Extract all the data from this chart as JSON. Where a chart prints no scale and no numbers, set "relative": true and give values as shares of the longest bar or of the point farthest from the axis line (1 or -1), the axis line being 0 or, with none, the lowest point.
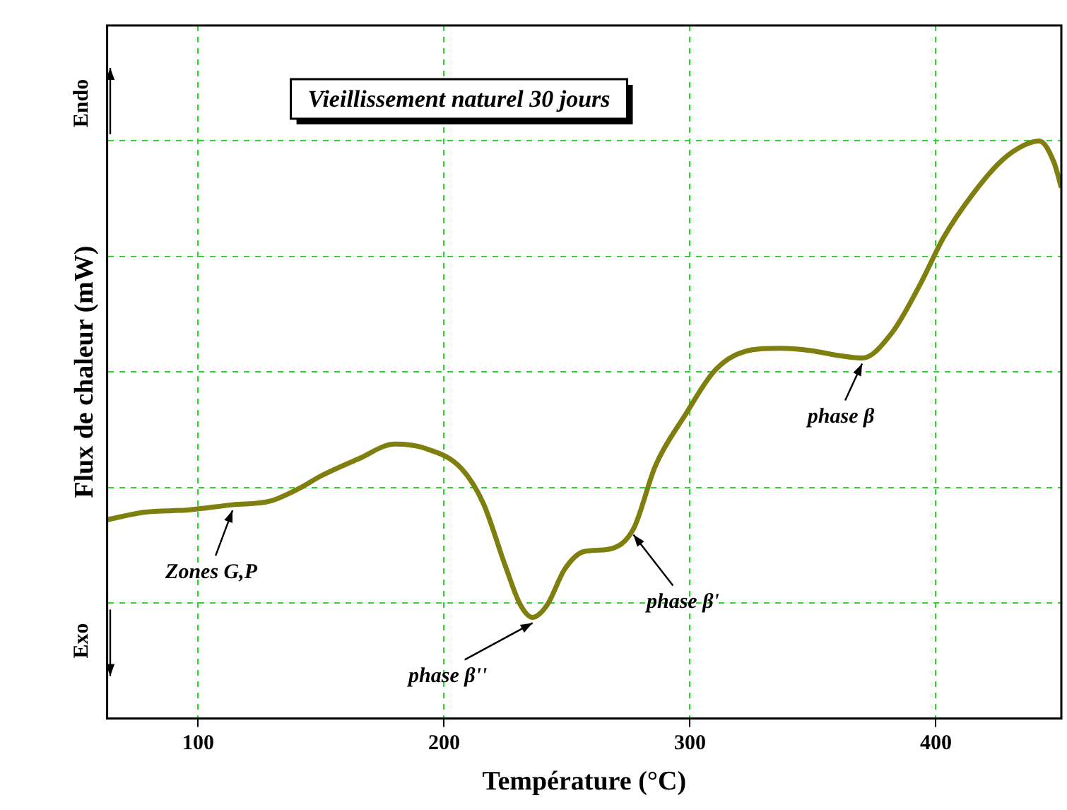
{
  "chart_data": {
    "type": "line",
    "title": "Vieillissement naturel 30 jours",
    "xlabel": "Température (°C)",
    "ylabel": "Flux de chaleur (mW)",
    "relative": true,
    "x": [
      63,
      78,
      96,
      114,
      129,
      141,
      150,
      165,
      180,
      192,
      207,
      216,
      225,
      231,
      236,
      242,
      249,
      257,
      267,
      277,
      286,
      298,
      310,
      322,
      337,
      349,
      361,
      370,
      382,
      394,
      403,
      415,
      427,
      436,
      442,
      448,
      451
    ],
    "series": [
      {
        "color": "#7f7f10",
        "values": [
          0.344,
          0.357,
          0.361,
          0.37,
          0.376,
          0.398,
          0.42,
          0.449,
          0.475,
          0.468,
          0.433,
          0.372,
          0.263,
          0.197,
          0.175,
          0.197,
          0.258,
          0.289,
          0.293,
          0.328,
          0.438,
          0.525,
          0.602,
          0.635,
          0.641,
          0.637,
          0.628,
          0.624,
          0.667,
          0.755,
          0.832,
          0.908,
          0.967,
          0.993,
          1,
          0.963,
          0.919
        ]
      }
    ],
    "xlim": [
      63,
      451
    ],
    "xticks": [
      100,
      200,
      300,
      400
    ],
    "grid": true,
    "marker": "none",
    "line_style": "solid",
    "annotations": [
      "Endo",
      "Exo",
      {
        "text": "Zones G,P",
        "x": 114,
        "y": 0.37
      },
      {
        "text": "phase β''",
        "x": 236,
        "y": 0.175
      },
      {
        "text": "phase β'",
        "x": 277,
        "y": 0.328
      },
      {
        "text": "phase β",
        "x": 370,
        "y": 0.624
      }
    ]
  }
}
